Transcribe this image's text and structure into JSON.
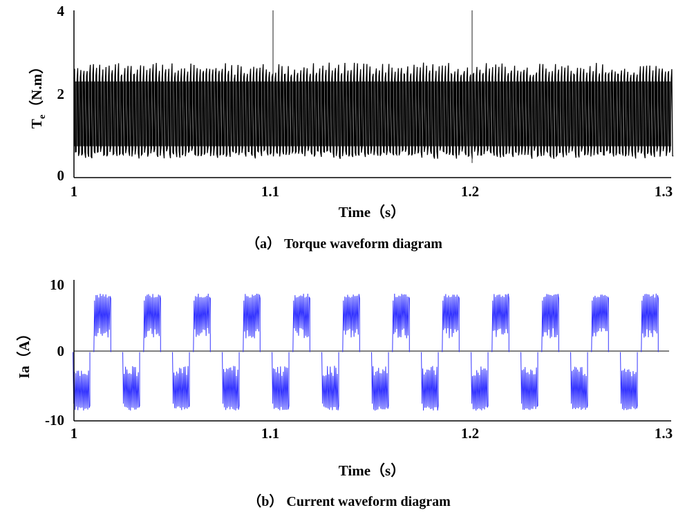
{
  "chart_data": [
    {
      "type": "line",
      "caption": "（a） Torque waveform diagram",
      "xlabel": "Time（s）",
      "ylabel": "Te（N.m）",
      "ylabel_main": "T",
      "ylabel_sub": "e",
      "ylabel_unit": "（N.m）",
      "xlim": [
        1,
        1.3
      ],
      "ylim": [
        0,
        4
      ],
      "x_ticks": [
        "1",
        "1.1",
        "1.2",
        "1.3"
      ],
      "y_ticks": [
        "0",
        "2",
        "4"
      ],
      "series": [
        {
          "color": "#000000",
          "mean": 1.5,
          "ripple_min": 0.45,
          "ripple_max": 2.75,
          "cycles": 190,
          "spikes": [
            {
              "x": 1.1,
              "y": 4.0
            },
            {
              "x": 1.2,
              "y": 4.0
            },
            {
              "x": 1.2,
              "y": 0.35
            }
          ]
        }
      ]
    },
    {
      "type": "line",
      "caption": "（b） Current waveform diagram",
      "xlabel": "Time（s）",
      "ylabel": "Ia（A）",
      "xlim": [
        1,
        1.3
      ],
      "ylim": [
        -10,
        10
      ],
      "x_ticks": [
        "1",
        "1.1",
        "1.2",
        "1.3"
      ],
      "y_ticks": [
        "-10",
        "0",
        "10"
      ],
      "zero_line": true,
      "series": [
        {
          "color": "#3333ff",
          "period": 0.025,
          "first_positive_start": 1.01,
          "first_negative_start": 1.0,
          "pulse_width": 0.0085,
          "amplitude_high": 8.5,
          "amplitude_low": 2.0,
          "positive_pulses": 12,
          "negative_pulses": 12
        }
      ]
    }
  ]
}
